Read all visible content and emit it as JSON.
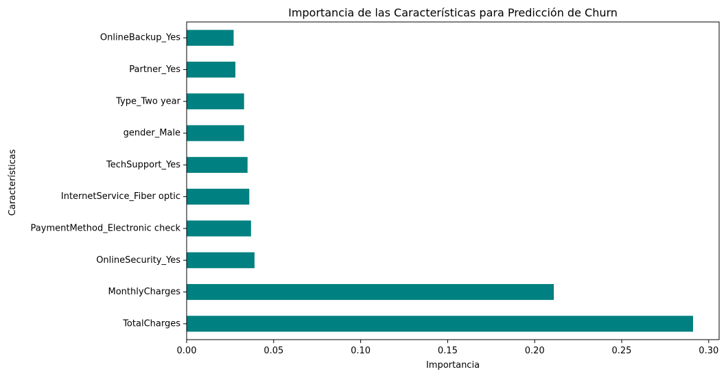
{
  "chart_data": {
    "type": "bar",
    "orientation": "horizontal",
    "title": "Importancia de las Características para Predicción de Churn",
    "xlabel": "Importancia",
    "ylabel": "Características",
    "categories": [
      "TotalCharges",
      "MonthlyCharges",
      "OnlineSecurity_Yes",
      "PaymentMethod_Electronic check",
      "InternetService_Fiber optic",
      "TechSupport_Yes",
      "gender_Male",
      "Type_Two year",
      "Partner_Yes",
      "OnlineBackup_Yes"
    ],
    "values": [
      0.291,
      0.211,
      0.039,
      0.037,
      0.036,
      0.035,
      0.033,
      0.033,
      0.028,
      0.027
    ],
    "xlim": [
      0,
      0.306
    ],
    "xticks": [
      0.0,
      0.05,
      0.1,
      0.15,
      0.2,
      0.25,
      0.3
    ],
    "xtick_labels": [
      "0.00",
      "0.05",
      "0.10",
      "0.15",
      "0.20",
      "0.25",
      "0.30"
    ],
    "bar_color": "#008080",
    "grid": false,
    "legend": "none"
  }
}
